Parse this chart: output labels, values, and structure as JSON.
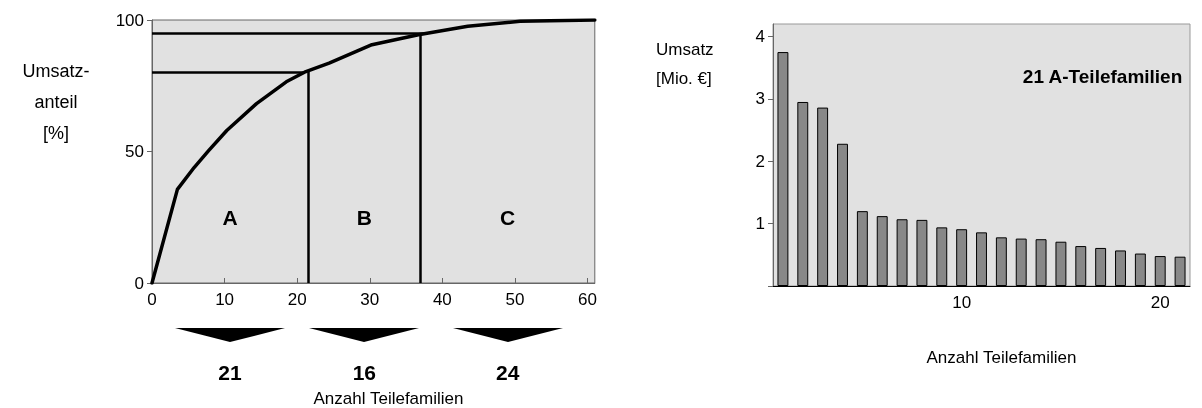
{
  "chart_data": [
    {
      "type": "line",
      "ylabel": "Umsatz-\nanteil\n[%]",
      "xlabel": "Anzahl Teilefamilien",
      "x": [
        0,
        3.5,
        5.8,
        7.8,
        10.3,
        14.4,
        18.5,
        21.2,
        24.4,
        30.3,
        36.7,
        43.5,
        50.7,
        61
      ],
      "series": [
        {
          "color": "#000000",
          "values": [
            0,
            35.6,
            43.9,
            50.3,
            58,
            68.2,
            76.5,
            80.4,
            83.6,
            90.6,
            94.4,
            97.6,
            99.5,
            100
          ]
        }
      ],
      "xlim": [
        0,
        61
      ],
      "xticks": [
        0,
        10,
        20,
        30,
        40,
        50,
        60
      ],
      "ylim": [
        0,
        100
      ],
      "yticks": [
        0,
        50,
        100
      ],
      "ref_lines": [
        {
          "axis": "y",
          "value": 80
        },
        {
          "axis": "y",
          "value": 95
        },
        {
          "axis": "x",
          "value": 21.5
        },
        {
          "axis": "x",
          "value": 37
        }
      ],
      "annotations": [
        "A",
        "B",
        "C",
        "21",
        "16",
        "24"
      ],
      "marker": "none",
      "line_style": "solid",
      "grid": false
    },
    {
      "type": "bar",
      "title": "21 A-Teilefamilien",
      "ylabel": "Umsatz\n[Mio. €]",
      "xlabel": "Anzahl Teilefamilien",
      "categories": [
        null,
        null,
        null,
        null,
        null,
        null,
        null,
        null,
        null,
        "10",
        null,
        null,
        null,
        null,
        null,
        null,
        null,
        null,
        null,
        "20",
        null
      ],
      "series": [
        {
          "color": "#888888",
          "values": [
            3.75,
            2.95,
            2.86,
            2.28,
            1.2,
            1.12,
            1.07,
            1.06,
            0.94,
            0.91,
            0.86,
            0.78,
            0.76,
            0.75,
            0.71,
            0.64,
            0.61,
            0.57,
            0.52,
            0.48,
            0.47
          ]
        }
      ],
      "ylim": [
        0,
        4.2
      ],
      "yticks": [
        {
          "value": 0,
          "label": null
        },
        1,
        2,
        3,
        4
      ],
      "grid": false
    }
  ]
}
